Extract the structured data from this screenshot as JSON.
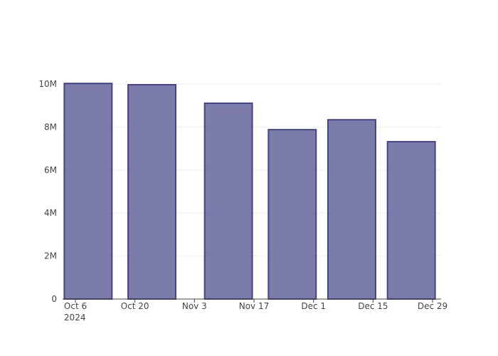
{
  "chart_data": {
    "type": "bar",
    "x": [
      "2024-10-09",
      "2024-10-24",
      "2024-11-11",
      "2024-11-26",
      "2024-12-10",
      "2024-12-24"
    ],
    "values": [
      10030000,
      9970000,
      9110000,
      7880000,
      8340000,
      7320000
    ],
    "color": "#444488",
    "opacity": 0.7,
    "xlim": [
      "2024-10-03",
      "2024-12-31"
    ],
    "xticks": [
      {
        "value": "2024-10-06",
        "label": "Oct 6\n2024"
      },
      {
        "value": "2024-10-20",
        "label": "Oct 20"
      },
      {
        "value": "2024-11-03",
        "label": "Nov 3"
      },
      {
        "value": "2024-11-17",
        "label": "Nov 17"
      },
      {
        "value": "2024-12-01",
        "label": "Dec 1"
      },
      {
        "value": "2024-12-15",
        "label": "Dec 15"
      },
      {
        "value": "2024-12-29",
        "label": "Dec 29"
      }
    ],
    "ylim": [
      0,
      10600000
    ],
    "yticks": [
      0,
      {
        "value": 2000000,
        "label": "2M"
      },
      {
        "value": 4000000,
        "label": "4M"
      },
      {
        "value": 6000000,
        "label": "6M"
      },
      {
        "value": 8000000,
        "label": "8M"
      },
      {
        "value": 10000000,
        "label": "10M"
      }
    ],
    "grid": true
  }
}
